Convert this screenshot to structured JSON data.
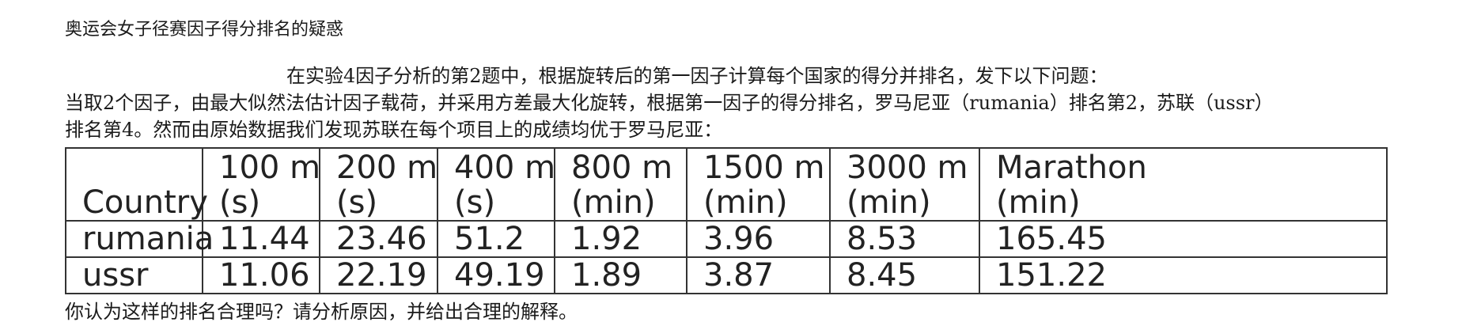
{
  "title": "奥运会女子径赛因子得分排名的疑惑",
  "paragraphs": [
    "在实验4因子分析的第2题中，根据旋转后的第一因子计算每个国家的得分并排名，发下以下问题：",
    "当取2个因子，由最大似然法估计因子载荷，并采用方差最大化旋转，根据第一因子的得分排名，罗马尼亚（rumania）排名第2，苏联（ussr）",
    "排名第4。然而由原始数据我们发现苏联在每个项目上的成绩均优于罗马尼亚：",
    "你认为这样的排名合理吗？请分析原因，并给出合理的解释。"
  ],
  "table": {
    "headers": [
      {
        "line1": "",
        "line2": "Country"
      },
      {
        "line1": "100 m",
        "line2": "(s)"
      },
      {
        "line1": "200 m",
        "line2": "(s)"
      },
      {
        "line1": "400 m",
        "line2": "(s)"
      },
      {
        "line1": "800 m",
        "line2": "(min)"
      },
      {
        "line1": "1500 m",
        "line2": "(min)"
      },
      {
        "line1": "3000 m",
        "line2": "(min)"
      },
      {
        "line1": "Marathon",
        "line2": "(min)"
      }
    ],
    "rows": [
      [
        "rumania",
        "11.44",
        "23.46",
        "51.2",
        "1.92",
        "3.96",
        "8.53",
        "165.45"
      ],
      [
        "ussr",
        "11.06",
        "22.19",
        "49.19",
        "1.89",
        "3.87",
        "8.45",
        "151.22"
      ]
    ]
  }
}
